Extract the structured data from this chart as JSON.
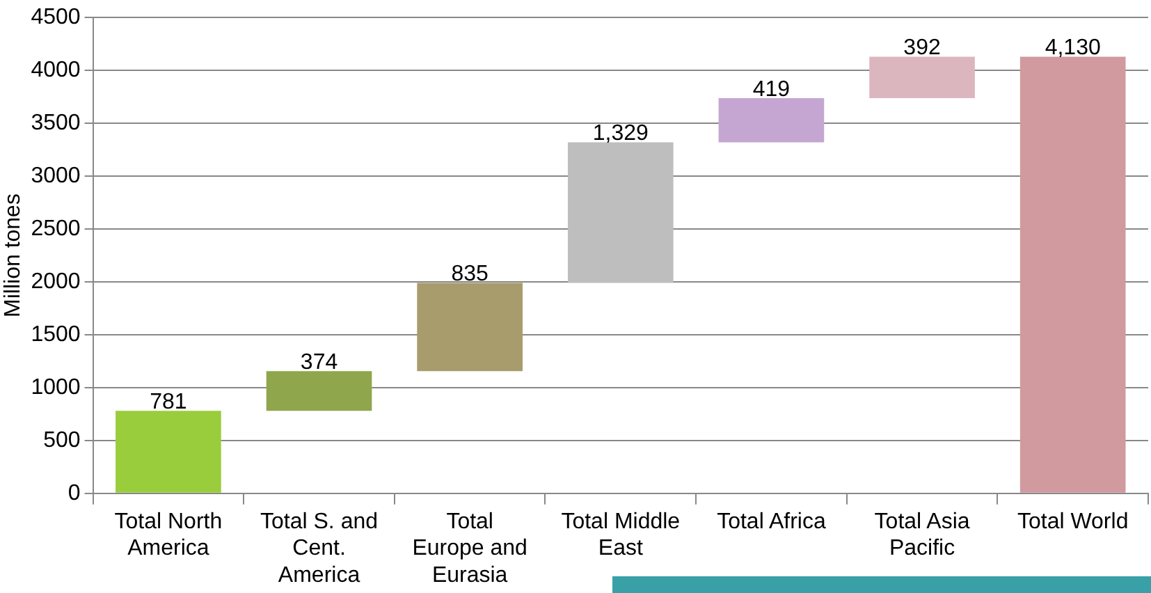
{
  "chart_data": {
    "type": "bar",
    "ylabel": "Million tones",
    "categories": [
      "Total North America",
      "Total S. and Cent. America",
      "Total Europe and Eurasia",
      "Total Middle East",
      "Total Africa",
      "Total Asia Pacific",
      "Total World"
    ],
    "values": [
      781,
      374,
      835,
      1329,
      419,
      392,
      4130
    ],
    "base": [
      0,
      781,
      1155,
      1990,
      3319,
      3738,
      0
    ],
    "colors": [
      "#9acd3c",
      "#8fa64c",
      "#a89c6c",
      "#bebebe",
      "#c5a6d2",
      "#dcb6be",
      "#d09a9e"
    ],
    "value_labels": [
      "781",
      "374",
      "835",
      "1,329",
      "419",
      "392",
      "4,130"
    ],
    "ylim": [
      0,
      4500
    ],
    "yticks": [
      0,
      500,
      1000,
      1500,
      2000,
      2500,
      3000,
      3500,
      4000,
      4500
    ],
    "grid": "y",
    "legend": false
  }
}
